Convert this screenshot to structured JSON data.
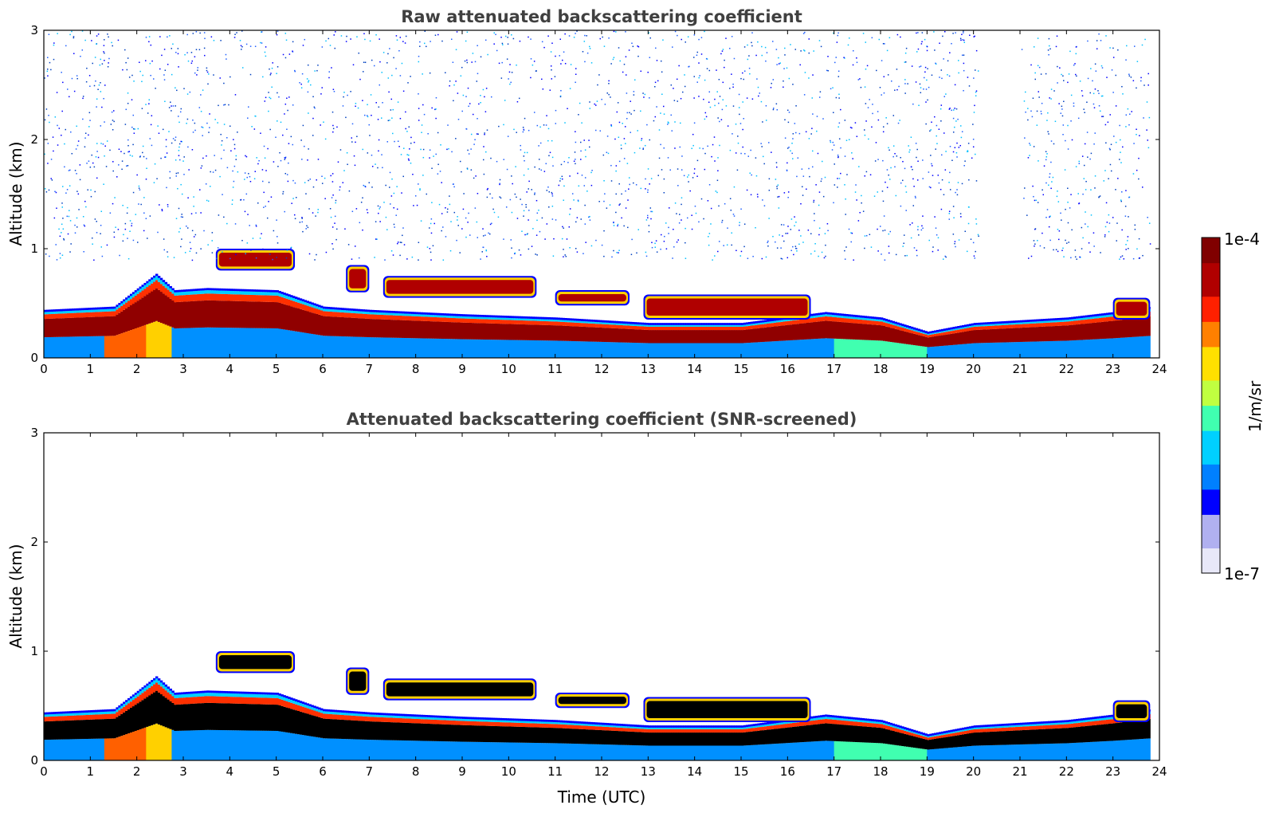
{
  "chart_data": [
    {
      "type": "heatmap",
      "title": "Raw attenuated backscattering coefficient",
      "xlabel": "",
      "ylabel": "Altitude (km)",
      "xlim": [
        0,
        24
      ],
      "ylim": [
        0,
        3
      ],
      "xticks": [
        0,
        1,
        2,
        3,
        4,
        5,
        6,
        7,
        8,
        9,
        10,
        11,
        12,
        13,
        14,
        15,
        16,
        17,
        18,
        19,
        20,
        21,
        22,
        23,
        24
      ],
      "yticks": [
        0,
        1,
        2,
        3
      ],
      "screened": false,
      "boundary_layer_top_km": [
        [
          0,
          0.42
        ],
        [
          1.5,
          0.45
        ],
        [
          2.4,
          0.75
        ],
        [
          2.8,
          0.6
        ],
        [
          3.5,
          0.62
        ],
        [
          5,
          0.6
        ],
        [
          6,
          0.45
        ],
        [
          7,
          0.42
        ],
        [
          9,
          0.38
        ],
        [
          11,
          0.35
        ],
        [
          13,
          0.3
        ],
        [
          15,
          0.3
        ],
        [
          16.8,
          0.4
        ],
        [
          18,
          0.35
        ],
        [
          19,
          0.22
        ],
        [
          20,
          0.3
        ],
        [
          22,
          0.35
        ],
        [
          23,
          0.4
        ],
        [
          23.8,
          0.45
        ]
      ],
      "cloud_layers": [
        {
          "start": 6.5,
          "end": 7.0,
          "base_km": 0.6,
          "top_km": 0.85
        },
        {
          "start": 7.3,
          "end": 10.6,
          "base_km": 0.55,
          "top_km": 0.75
        },
        {
          "start": 11.0,
          "end": 12.6,
          "base_km": 0.48,
          "top_km": 0.62
        },
        {
          "start": 12.9,
          "end": 16.5,
          "base_km": 0.35,
          "top_km": 0.58
        },
        {
          "start": 3.7,
          "end": 5.4,
          "base_km": 0.8,
          "top_km": 1.0
        },
        {
          "start": 23.0,
          "end": 23.8,
          "base_km": 0.35,
          "top_km": 0.55
        }
      ]
    },
    {
      "type": "heatmap",
      "title": "Attenuated backscattering coefficient (SNR-screened)",
      "xlabel": "Time (UTC)",
      "ylabel": "Altitude (km)",
      "xlim": [
        0,
        24
      ],
      "ylim": [
        0,
        3
      ],
      "xticks": [
        0,
        1,
        2,
        3,
        4,
        5,
        6,
        7,
        8,
        9,
        10,
        11,
        12,
        13,
        14,
        15,
        16,
        17,
        18,
        19,
        20,
        21,
        22,
        23,
        24
      ],
      "yticks": [
        0,
        1,
        2,
        3
      ],
      "screened": true
    }
  ],
  "colorbar": {
    "label": "1/m/sr",
    "max_label": "1e-4",
    "min_label": "1e-7",
    "range": [
      1e-07,
      0.0001
    ],
    "scale": "log",
    "colormap": "jet",
    "colors": [
      "#e8e8f8",
      "#b0b0f0",
      "#0000ff",
      "#0080ff",
      "#00d0ff",
      "#40ffb0",
      "#c0ff40",
      "#ffe000",
      "#ff8000",
      "#ff2000",
      "#b00000",
      "#800000"
    ]
  }
}
